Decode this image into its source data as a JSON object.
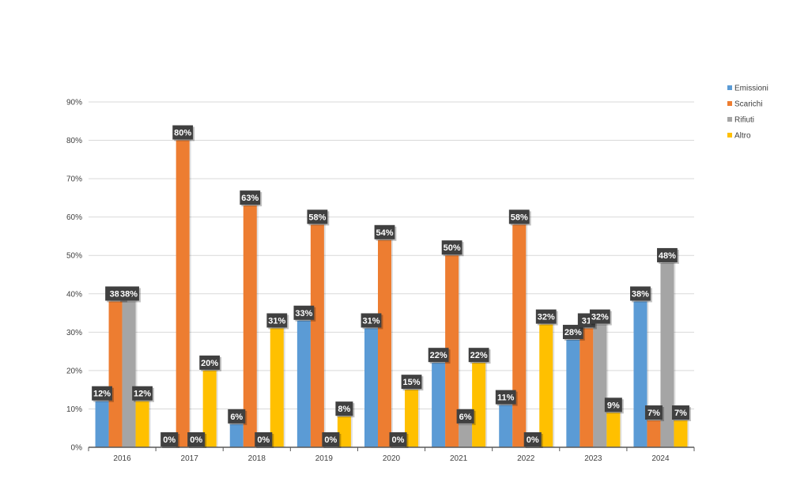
{
  "chart_data": {
    "type": "bar",
    "categories": [
      "2016",
      "2017",
      "2018",
      "2019",
      "2020",
      "2021",
      "2022",
      "2023",
      "2024"
    ],
    "series": [
      {
        "name": "Emissioni",
        "color": "#5B9BD5",
        "values": [
          12,
          0,
          6,
          33,
          31,
          22,
          11,
          28,
          38
        ]
      },
      {
        "name": "Scarichi",
        "color": "#ED7D31",
        "values": [
          38,
          80,
          63,
          58,
          54,
          50,
          58,
          31,
          7
        ]
      },
      {
        "name": "Rifiuti",
        "color": "#A5A5A5",
        "values": [
          38,
          0,
          0,
          0,
          0,
          6,
          0,
          32,
          48
        ]
      },
      {
        "name": "Altro",
        "color": "#FFC000",
        "values": [
          12,
          20,
          31,
          8,
          15,
          22,
          32,
          9,
          7
        ]
      }
    ],
    "data_labels": [
      [
        "12%",
        "0%",
        "6%",
        "33%",
        "31%",
        "22%",
        "11%",
        "28%",
        "38%"
      ],
      [
        "38'",
        "80%",
        "63%",
        "58%",
        "54%",
        "50%",
        "58%",
        "31",
        "7%"
      ],
      [
        "38%",
        "0%",
        "0%",
        "0%",
        "0%",
        "6%",
        "0%",
        "32%",
        "48%"
      ],
      [
        "12%",
        "20%",
        "31%",
        "8%",
        "15%",
        "22%",
        "32%",
        "9%",
        "7%"
      ]
    ],
    "y_ticks": [
      "0%",
      "10%",
      "20%",
      "30%",
      "40%",
      "50%",
      "60%",
      "70%",
      "80%",
      "90%"
    ],
    "ylim": [
      0,
      90
    ],
    "y_unit": "%",
    "grid": true,
    "legend_position": "right",
    "data_label_style": "dark-callout",
    "title": "",
    "xlabel": "",
    "ylabel": ""
  }
}
